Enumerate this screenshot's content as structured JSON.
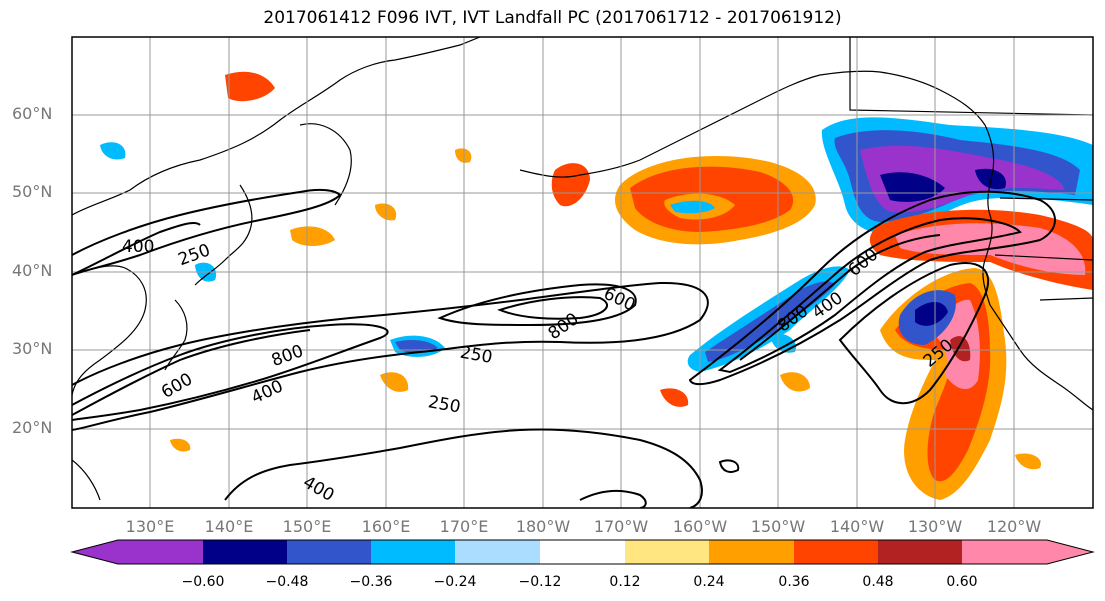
{
  "title": "2017061412 F096 IVT, IVT Landfall PC (2017061712 - 2017061912)",
  "lat_labels": [
    "60°N",
    "50°N",
    "40°N",
    "30°N",
    "20°N"
  ],
  "lon_labels": [
    "130°E",
    "140°E",
    "150°E",
    "160°E",
    "170°E",
    "180°W",
    "170°W",
    "160°W",
    "150°W",
    "140°W",
    "130°W",
    "120°W"
  ],
  "colorbar": {
    "colors": [
      "#9933cc",
      "#000088",
      "#3355cc",
      "#00bbff",
      "#aaddff",
      "#ffffff",
      "#ffe680",
      "#ff9f00",
      "#ff4400",
      "#b22222",
      "#ff88aa"
    ],
    "tick_labels": [
      "−0.60",
      "−0.48",
      "−0.36",
      "−0.24",
      "−0.12",
      "0.12",
      "0.24",
      "0.36",
      "0.48",
      "0.60"
    ]
  },
  "contour_labels": [
    "400",
    "250",
    "600",
    "800",
    "400",
    "250",
    "800",
    "600",
    "250",
    "400",
    "800",
    "400",
    "600",
    "250"
  ]
}
